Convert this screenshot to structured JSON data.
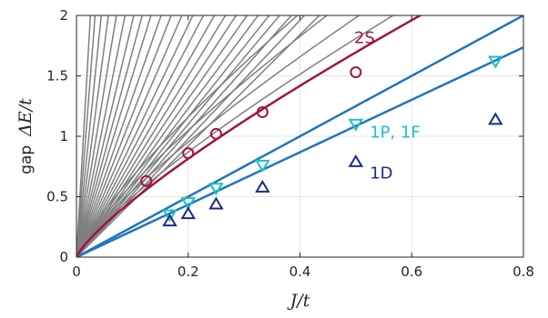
{
  "chart_data": {
    "type": "line",
    "xlabel": "J/t",
    "ylabel_prefix": "gap",
    "ylabel": "ΔE/t",
    "xlim": [
      0,
      0.8
    ],
    "ylim": [
      0,
      2
    ],
    "xticks": [
      0,
      0.2,
      0.4,
      0.6,
      0.8
    ],
    "yticks": [
      0,
      0.5,
      1,
      1.5,
      2
    ],
    "xtick_labels": [
      "0",
      "0.2",
      "0.4",
      "0.6",
      "0.8"
    ],
    "ytick_labels": [
      "0",
      "0.5",
      "1",
      "1.5",
      "2"
    ],
    "grid": true,
    "gray_fan_slopes": [
      80,
      60,
      45,
      35,
      28,
      23,
      19.5,
      17,
      15,
      13.2,
      11.8,
      10.6,
      9.6,
      8.8,
      8.1,
      7.5,
      7.0,
      6.55,
      6.15,
      5.8,
      5.5,
      5.2,
      4.9,
      4.6
    ],
    "gray_coefficients": [
      4.2,
      3.8,
      3.45,
      3.15,
      2.95
    ],
    "series": [
      {
        "name": "2S",
        "color": "#a0163c",
        "curve_coefficient": 2.95,
        "curve_exponent": 0.8,
        "markers": "circle",
        "points": [
          [
            0.125,
            0.63
          ],
          [
            0.2,
            0.86
          ],
          [
            0.25,
            1.02
          ],
          [
            0.333,
            1.2
          ],
          [
            0.5,
            1.53
          ]
        ]
      },
      {
        "name": "1P, 1F",
        "color": "#1ac1c1",
        "line_color": "#1f75bf",
        "curve_coefficient": 2.5,
        "curve_exponent": 1,
        "markers": "triangle-down",
        "points": [
          [
            0.167,
            0.35
          ],
          [
            0.2,
            0.45
          ],
          [
            0.25,
            0.57
          ],
          [
            0.333,
            0.76
          ],
          [
            0.5,
            1.1
          ],
          [
            0.75,
            1.62
          ]
        ]
      },
      {
        "name": "1D",
        "color": "#1c2a86",
        "line_color": "#1f75bf",
        "curve_coefficient": 2.17,
        "curve_exponent": 1,
        "markers": "triangle-up",
        "points": [
          [
            0.167,
            0.3
          ],
          [
            0.2,
            0.36
          ],
          [
            0.25,
            0.44
          ],
          [
            0.333,
            0.58
          ],
          [
            0.5,
            0.79
          ],
          [
            0.75,
            1.14
          ]
        ]
      }
    ],
    "annotations": [
      {
        "text": "2S",
        "x": 0.497,
        "y": 1.77,
        "color": "#a0163c"
      },
      {
        "text": "1P, 1F",
        "x": 0.525,
        "y": 0.99,
        "color": "#1ac1c1"
      },
      {
        "text": "1D",
        "x": 0.525,
        "y": 0.65,
        "color": "#1c2a86"
      }
    ]
  }
}
